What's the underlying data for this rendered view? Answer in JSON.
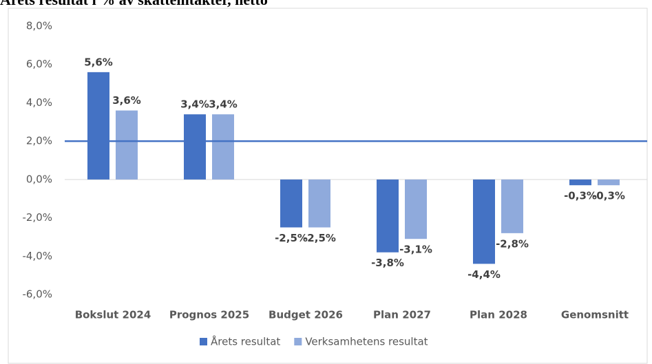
{
  "chart_data": {
    "type": "bar",
    "title": "Årets resultat i % av skatteintäkter, netto",
    "categories": [
      "Bokslut 2024",
      "Prognos 2025",
      "Budget 2026",
      "Plan 2027",
      "Plan 2028",
      "Genomsnitt"
    ],
    "series": [
      {
        "name": "Årets resultat",
        "color": "#4472c4",
        "values": [
          5.6,
          3.4,
          -2.5,
          -3.8,
          -4.4,
          -0.3
        ],
        "value_labels": [
          "5,6%",
          "3,4%",
          "-2,5%",
          "-3,8%",
          "-4,4%",
          "-0,3%"
        ]
      },
      {
        "name": "Verksamhetens resultat",
        "color": "#8faadc",
        "values": [
          3.6,
          3.4,
          -2.5,
          -3.1,
          -2.8,
          -0.3
        ],
        "value_labels": [
          "3,6%",
          "3,4%",
          "-2,5%",
          "-3,1%",
          "-2,8%",
          "-0,3%"
        ]
      }
    ],
    "reference_line": 2.0,
    "reference_color": "#4472c4",
    "ylim": [
      -6,
      8
    ],
    "yticks": [
      {
        "value": -6,
        "label": "-6,0%"
      },
      {
        "value": -4,
        "label": "-4,0%"
      },
      {
        "value": -2,
        "label": "-2,0%"
      },
      {
        "value": 0,
        "label": "0,0%"
      },
      {
        "value": 2,
        "label": "2,0%"
      },
      {
        "value": 4,
        "label": "4,0%"
      },
      {
        "value": 6,
        "label": "6,0%"
      },
      {
        "value": 8,
        "label": "8,0%"
      }
    ],
    "grid": false,
    "legend": "bottom"
  }
}
